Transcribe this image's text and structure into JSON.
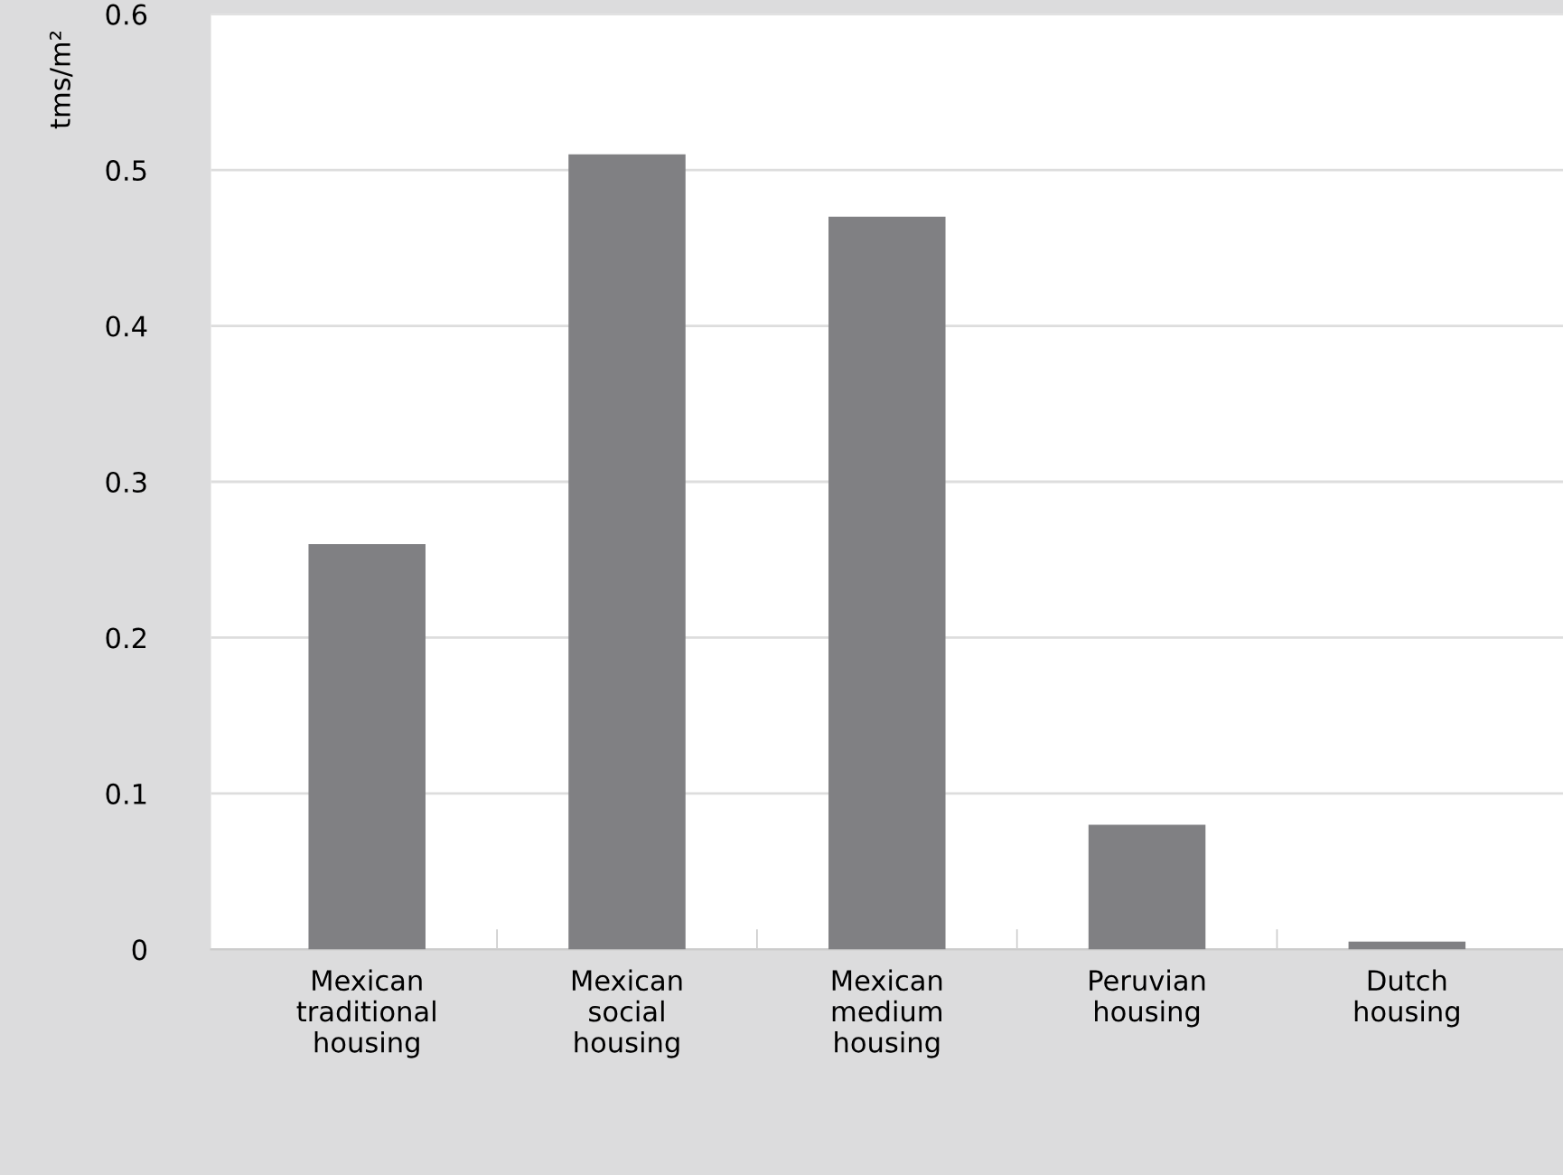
{
  "chart_data": {
    "type": "bar",
    "ylabel": "tms/m²",
    "categories": [
      "Mexican\ntraditional\nhousing",
      "Mexican\nsocial\nhousing",
      "Mexican\nmedium\nhousing",
      "Peruvian\nhousing",
      "Dutch\nhousing"
    ],
    "values": [
      0.26,
      0.51,
      0.47,
      0.08,
      0.005
    ],
    "color": "#808083",
    "ylim": [
      0,
      0.6
    ],
    "yticks": [
      0,
      0.1,
      0.2,
      0.3,
      0.4,
      0.5,
      0.6
    ],
    "grid": "y"
  }
}
